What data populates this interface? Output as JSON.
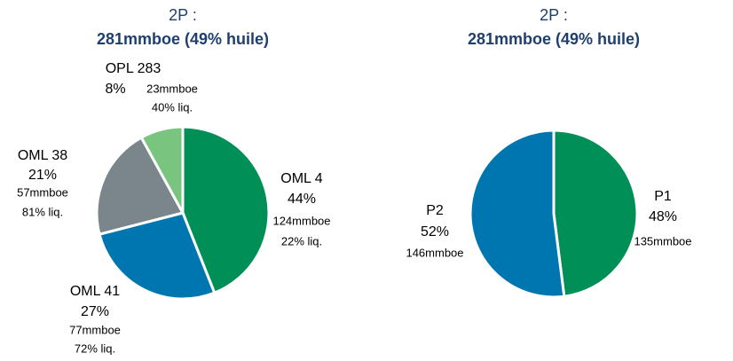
{
  "chart_data": [
    {
      "type": "pie",
      "title": "2P :",
      "subtitle": "281mmboe (49% huile)",
      "categories": [
        "OML 4",
        "OML 41",
        "OML 38",
        "OPL 283"
      ],
      "values": [
        44,
        27,
        21,
        8
      ],
      "value_labels": [
        "44%",
        "27%",
        "21%",
        "8%"
      ],
      "volume_labels": [
        "124mmboe",
        "77mmboe",
        "57mmboe",
        "23mmboe"
      ],
      "liquid_labels": [
        "22% liq.",
        "72% liq.",
        "81% liq.",
        "40% liq."
      ],
      "colors": [
        "#009057",
        "#0076b0",
        "#7a868c",
        "#79c47e"
      ]
    },
    {
      "type": "pie",
      "title": "2P :",
      "subtitle": "281mmboe (49% huile)",
      "categories": [
        "P1",
        "P2"
      ],
      "values": [
        48,
        52
      ],
      "value_labels": [
        "48%",
        "52%"
      ],
      "volume_labels": [
        "135mmboe",
        "146mmboe"
      ],
      "colors": [
        "#009057",
        "#0076b0"
      ]
    }
  ]
}
